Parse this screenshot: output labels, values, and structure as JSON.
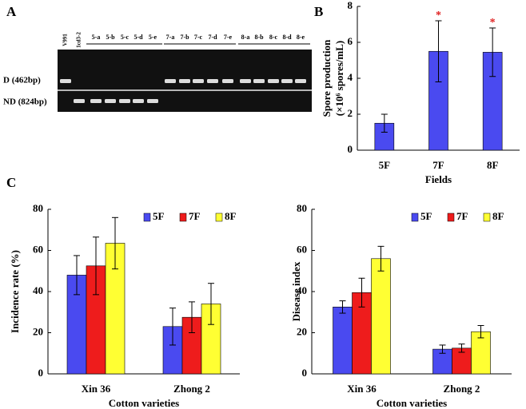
{
  "panel_labels": [
    "A",
    "B",
    "C"
  ],
  "gel": {
    "row_labels": [
      "D (462bp)",
      "ND (824bp)"
    ],
    "lanes": [
      {
        "label": "V991",
        "d": true,
        "nd": false
      },
      {
        "label": "1cd3-2",
        "d": false,
        "nd": true
      },
      {
        "label": "5-a",
        "d": false,
        "nd": true
      },
      {
        "label": "5-b",
        "d": false,
        "nd": true
      },
      {
        "label": "5-c",
        "d": false,
        "nd": true
      },
      {
        "label": "5-d",
        "d": false,
        "nd": true
      },
      {
        "label": "5-e",
        "d": false,
        "nd": true
      },
      {
        "label": "7-a",
        "d": true,
        "nd": false
      },
      {
        "label": "7-b",
        "d": true,
        "nd": false
      },
      {
        "label": "7-c",
        "d": true,
        "nd": false
      },
      {
        "label": "7-d",
        "d": true,
        "nd": false
      },
      {
        "label": "7-e",
        "d": true,
        "nd": false
      },
      {
        "label": "8-a",
        "d": true,
        "nd": false
      },
      {
        "label": "8-b",
        "d": true,
        "nd": false
      },
      {
        "label": "8-c",
        "d": true,
        "nd": false
      },
      {
        "label": "8-d",
        "d": true,
        "nd": false
      },
      {
        "label": "8-e",
        "d": true,
        "nd": false
      }
    ]
  },
  "chart_data": [
    {
      "type": "bar",
      "categories": [
        "5F",
        "7F",
        "8F"
      ],
      "values": [
        1.5,
        5.5,
        5.45
      ],
      "errors": [
        0.5,
        1.7,
        1.35
      ],
      "color": "#4a4af0",
      "significance": [
        null,
        "*",
        "*"
      ],
      "ylim": [
        0,
        8
      ],
      "yticks": [
        0,
        2,
        4,
        6,
        8
      ],
      "ylabel": [
        "Spore production",
        "(×10⁶ spores/mL)"
      ],
      "xlabel": "Fields"
    },
    {
      "type": "grouped-bar",
      "categories": [
        "Xin 36",
        "Zhong 2"
      ],
      "series": [
        {
          "name": "5F",
          "color": "#4a4af0",
          "values": [
            48,
            23
          ],
          "errors": [
            9.5,
            9
          ]
        },
        {
          "name": "7F",
          "color": "#ee1c1c",
          "values": [
            52.5,
            27.5
          ],
          "errors": [
            14,
            7.5
          ]
        },
        {
          "name": "8F",
          "color": "#ffff33",
          "values": [
            63.5,
            34
          ],
          "errors": [
            12.5,
            10
          ]
        }
      ],
      "ylim": [
        0,
        80
      ],
      "yticks": [
        0,
        20,
        40,
        60,
        80
      ],
      "ylabel": [
        "Incidence rate (%)"
      ],
      "xlabel": "Cotton varieties"
    },
    {
      "type": "grouped-bar",
      "categories": [
        "Xin 36",
        "Zhong 2"
      ],
      "series": [
        {
          "name": "5F",
          "color": "#4a4af0",
          "values": [
            32.5,
            12
          ],
          "errors": [
            3,
            2
          ]
        },
        {
          "name": "7F",
          "color": "#ee1c1c",
          "values": [
            39.5,
            12.5
          ],
          "errors": [
            7,
            2
          ]
        },
        {
          "name": "8F",
          "color": "#ffff33",
          "values": [
            56,
            20.5
          ],
          "errors": [
            6,
            3
          ]
        }
      ],
      "ylim": [
        0,
        80
      ],
      "yticks": [
        0,
        20,
        40,
        60,
        80
      ],
      "ylabel": [
        "Disease index"
      ],
      "xlabel": "Cotton varieties"
    }
  ]
}
